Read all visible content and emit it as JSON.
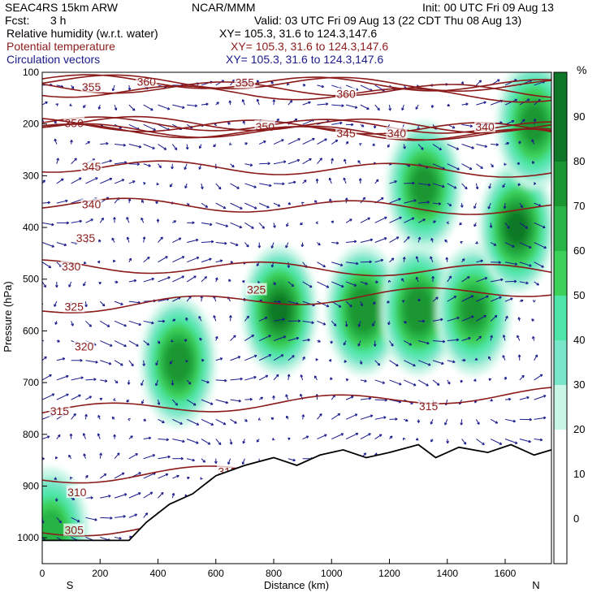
{
  "header": {
    "model": "SEAC4RS 15km ARW",
    "org": "NCAR/MMM",
    "init": "Init: 00 UTC Fri 09 Aug 13",
    "fcst_label": "Fcst:",
    "fcst_value": "3 h",
    "valid": "Valid: 03 UTC Fri 09 Aug 13 (22 CDT Thu 08 Aug 13)",
    "fields": [
      {
        "name": "Relative humidity (w.r.t. water)",
        "xy": "XY= 105.3, 31.6 to 124.3,147.6",
        "color": "#000000"
      },
      {
        "name": "Potential temperature",
        "xy": "XY= 105.3, 31.6 to 124.3,147.6",
        "color": "#8b1a1a"
      },
      {
        "name": "Circulation vectors",
        "xy": "XY= 105.3, 31.6 to 124.3,147.6",
        "color": "#1a1a8b"
      }
    ]
  },
  "chart_data": {
    "type": "heatmap",
    "title": "",
    "xlabel": "Distance (km)",
    "ylabel": "Pressure (hPa)",
    "xlim": [
      0,
      1760
    ],
    "ylim": [
      1050,
      100
    ],
    "x_ticks": [
      "0",
      "200",
      "400",
      "600",
      "800",
      "1000",
      "1200",
      "1400",
      "1600"
    ],
    "x_tick_values": [
      0,
      200,
      400,
      600,
      800,
      1000,
      1200,
      1400,
      1600
    ],
    "y_ticks": [
      "100",
      "200",
      "300",
      "400",
      "500",
      "600",
      "700",
      "800",
      "900",
      "1000"
    ],
    "y_tick_values": [
      100,
      200,
      300,
      400,
      500,
      600,
      700,
      800,
      900,
      1000
    ],
    "endpoints": {
      "left": "S",
      "right": "N"
    },
    "colorbar": {
      "unit": "%",
      "levels": [
        0,
        10,
        20,
        30,
        40,
        50,
        60,
        70,
        80,
        90
      ],
      "colors": [
        "#ffffff",
        "#ffffff",
        "#ffffff",
        "#c8f5e6",
        "#78e6c8",
        "#4ee6a8",
        "#3cd25a",
        "#28b446",
        "#1a9632",
        "#0f7828"
      ]
    },
    "theta_labels": [
      {
        "text": "360",
        "x": 360,
        "y": 118
      },
      {
        "text": "355",
        "x": 170,
        "y": 128
      },
      {
        "text": "355",
        "x": 700,
        "y": 120
      },
      {
        "text": "360",
        "x": 1050,
        "y": 142
      },
      {
        "text": "350",
        "x": 110,
        "y": 198
      },
      {
        "text": "350",
        "x": 770,
        "y": 205
      },
      {
        "text": "345",
        "x": 1050,
        "y": 218
      },
      {
        "text": "340",
        "x": 1225,
        "y": 218
      },
      {
        "text": "340",
        "x": 1530,
        "y": 205
      },
      {
        "text": "345",
        "x": 170,
        "y": 282
      },
      {
        "text": "340",
        "x": 170,
        "y": 355
      },
      {
        "text": "335",
        "x": 150,
        "y": 420
      },
      {
        "text": "330",
        "x": 100,
        "y": 475
      },
      {
        "text": "325",
        "x": 740,
        "y": 520
      },
      {
        "text": "325",
        "x": 110,
        "y": 553
      },
      {
        "text": "320",
        "x": 145,
        "y": 630
      },
      {
        "text": "315",
        "x": 60,
        "y": 755
      },
      {
        "text": "315",
        "x": 1335,
        "y": 745
      },
      {
        "text": "315",
        "x": 640,
        "y": 872
      },
      {
        "text": "310",
        "x": 120,
        "y": 912
      },
      {
        "text": "305",
        "x": 110,
        "y": 985
      }
    ],
    "rh_maxima": [
      {
        "x": 470,
        "p": 660,
        "rh": 85
      },
      {
        "x": 820,
        "p": 560,
        "rh": 90
      },
      {
        "x": 1110,
        "p": 560,
        "rh": 88
      },
      {
        "x": 1320,
        "p": 320,
        "rh": 82
      },
      {
        "x": 1300,
        "p": 560,
        "rh": 88
      },
      {
        "x": 1490,
        "p": 560,
        "rh": 80
      },
      {
        "x": 1640,
        "p": 400,
        "rh": 90
      },
      {
        "x": 1700,
        "p": 200,
        "rh": 82
      },
      {
        "x": 30,
        "p": 990,
        "rh": 75
      }
    ]
  }
}
